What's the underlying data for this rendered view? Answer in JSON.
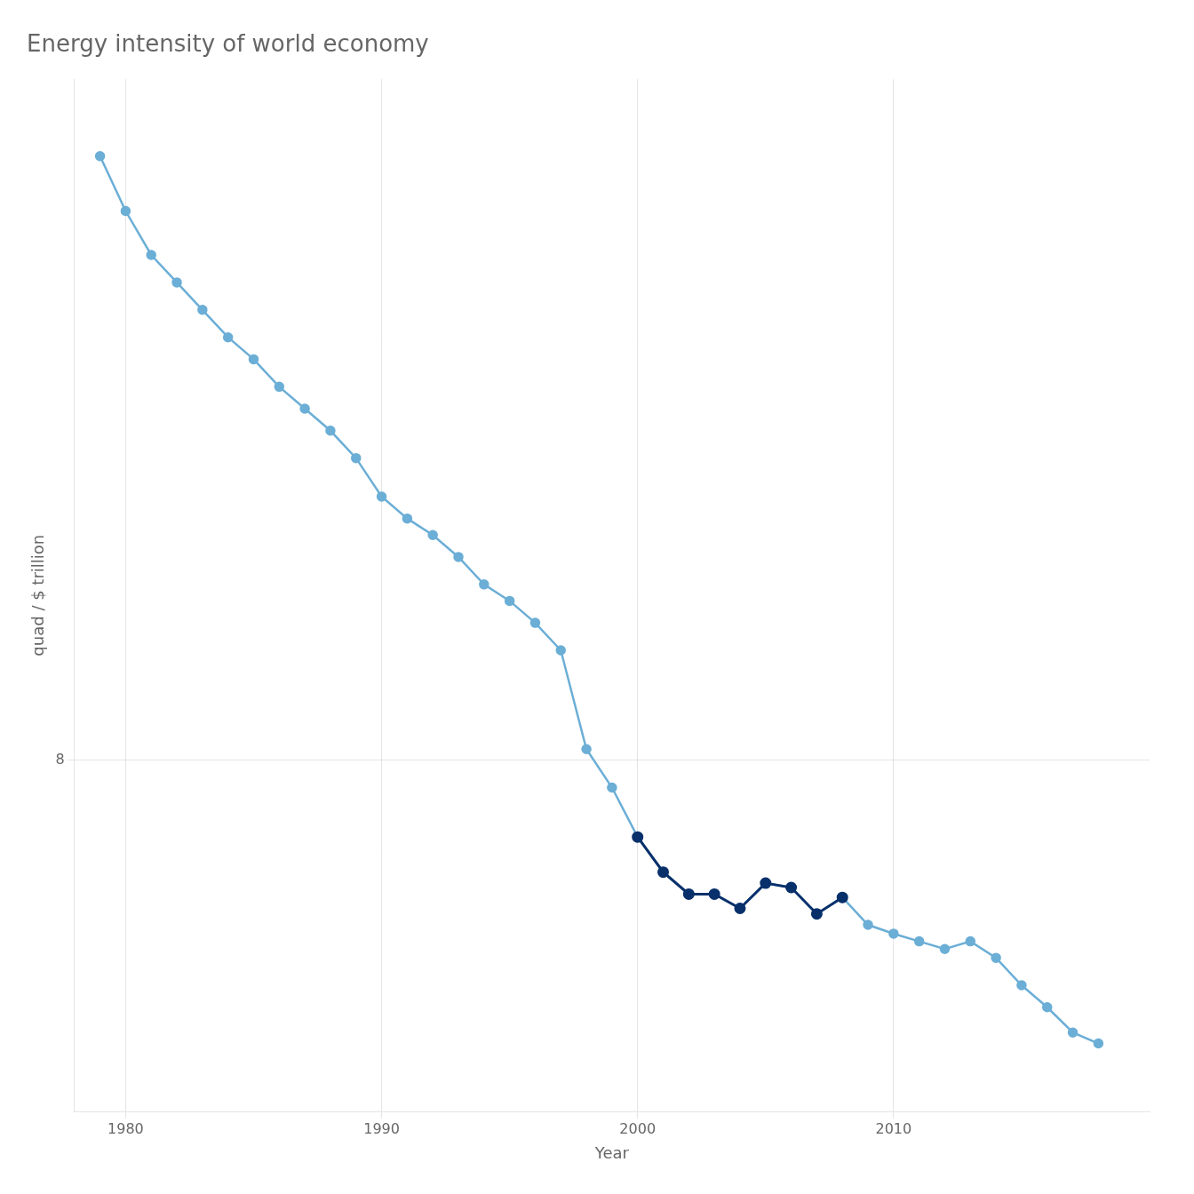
{
  "chart_data": {
    "type": "line",
    "title": "Energy intensity of world economy",
    "xlabel": "Year",
    "ylabel": "quad / $ trillion",
    "x": [
      1979,
      1980,
      1981,
      1982,
      1983,
      1984,
      1985,
      1986,
      1987,
      1988,
      1989,
      1990,
      1991,
      1992,
      1993,
      1994,
      1995,
      1996,
      1997,
      1998,
      1999,
      2000,
      2001,
      2002,
      2003,
      2004,
      2005,
      2006,
      2007,
      2008,
      2009,
      2010,
      2011,
      2012,
      2013,
      2014,
      2015,
      2016,
      2017,
      2018
    ],
    "series": [
      {
        "color": "#6baed6",
        "values": [
          13.5,
          13.0,
          12.6,
          12.35,
          12.1,
          11.85,
          11.65,
          11.4,
          11.2,
          11.0,
          10.75,
          10.4,
          10.2,
          10.05,
          9.85,
          9.6,
          9.45,
          9.25,
          9.0,
          8.1,
          7.75,
          7.3,
          6.98,
          6.78,
          6.78,
          6.65,
          6.88,
          6.84,
          6.6,
          6.75,
          6.5,
          6.42,
          6.35,
          6.28,
          6.35,
          6.2,
          5.95,
          5.75,
          5.52,
          5.42
        ]
      },
      {
        "color": "#08306b",
        "values": [
          null,
          null,
          null,
          null,
          null,
          null,
          null,
          null,
          null,
          null,
          null,
          null,
          null,
          null,
          null,
          null,
          null,
          null,
          null,
          null,
          null,
          7.3,
          6.98,
          6.78,
          6.78,
          6.65,
          6.88,
          6.84,
          6.6,
          6.75,
          null,
          null,
          null,
          null,
          null,
          null,
          null,
          null,
          null,
          null
        ]
      }
    ],
    "xlim": [
      1978,
      2020
    ],
    "xticks": [
      1980,
      1990,
      2000,
      2010
    ],
    "ylim": [
      4.8,
      14.2
    ],
    "yticks": [
      8
    ],
    "grid": true,
    "marker": "circle",
    "line_style": "solid"
  }
}
